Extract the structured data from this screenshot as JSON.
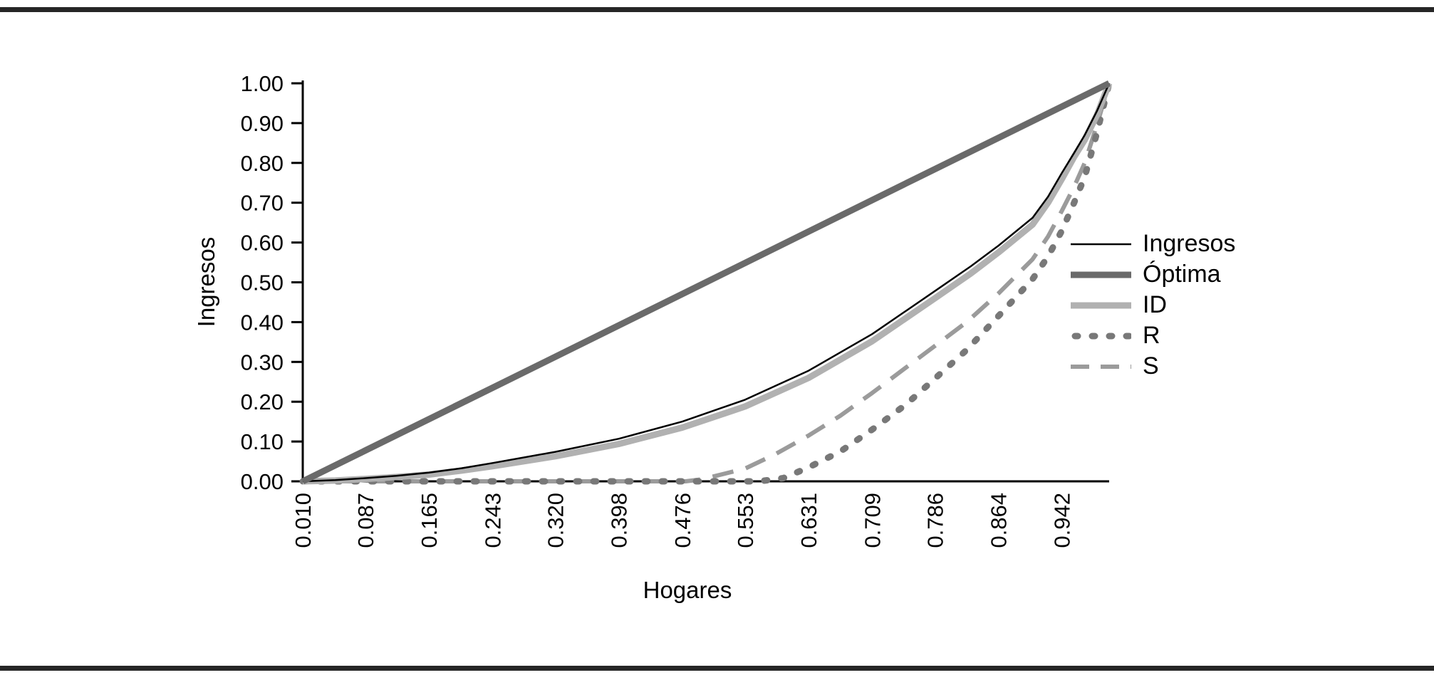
{
  "figure": {
    "x_axis_title": "Hogares",
    "y_axis_title": "Ingresos"
  },
  "chart_data": {
    "type": "line",
    "title": "",
    "xlabel": "Hogares",
    "ylabel": "Ingresos",
    "xlim": [
      0.01,
      1.0
    ],
    "ylim": [
      0.0,
      1.0
    ],
    "grid": false,
    "legend_position": "right-center",
    "x_tick_labels": [
      "0.010",
      "0.087",
      "0.165",
      "0.243",
      "0.320",
      "0.398",
      "0.476",
      "0.553",
      "0.631",
      "0.709",
      "0.786",
      "0.864",
      "0.942"
    ],
    "y_tick_labels": [
      "0.00",
      "0.10",
      "0.20",
      "0.30",
      "0.40",
      "0.50",
      "0.60",
      "0.70",
      "0.80",
      "0.90",
      "1.00"
    ],
    "axis_color": "#000000",
    "text_color": "#000000",
    "series": [
      {
        "name": "Ingresos",
        "style": "solid",
        "color": "#000000",
        "width": 2.5,
        "points": [
          [
            0.01,
            0.0
          ],
          [
            0.05,
            0.003
          ],
          [
            0.087,
            0.008
          ],
          [
            0.125,
            0.014
          ],
          [
            0.165,
            0.022
          ],
          [
            0.205,
            0.033
          ],
          [
            0.243,
            0.046
          ],
          [
            0.32,
            0.074
          ],
          [
            0.398,
            0.107
          ],
          [
            0.476,
            0.15
          ],
          [
            0.553,
            0.205
          ],
          [
            0.631,
            0.278
          ],
          [
            0.709,
            0.37
          ],
          [
            0.786,
            0.478
          ],
          [
            0.83,
            0.54
          ],
          [
            0.864,
            0.592
          ],
          [
            0.906,
            0.662
          ],
          [
            0.925,
            0.715
          ],
          [
            0.942,
            0.775
          ],
          [
            0.957,
            0.825
          ],
          [
            0.97,
            0.87
          ],
          [
            0.985,
            0.93
          ],
          [
            1.0,
            1.0
          ]
        ]
      },
      {
        "name": "Óptima",
        "style": "solid",
        "color": "#6a6a6a",
        "width": 9,
        "points": [
          [
            0.01,
            0.0
          ],
          [
            0.25,
            0.242
          ],
          [
            0.5,
            0.495
          ],
          [
            0.75,
            0.748
          ],
          [
            1.0,
            1.0
          ]
        ]
      },
      {
        "name": "ID",
        "style": "solid",
        "color": "#b1b1b1",
        "width": 9,
        "points": [
          [
            0.01,
            0.0
          ],
          [
            0.05,
            0.002
          ],
          [
            0.087,
            0.006
          ],
          [
            0.125,
            0.011
          ],
          [
            0.165,
            0.017
          ],
          [
            0.205,
            0.027
          ],
          [
            0.243,
            0.038
          ],
          [
            0.32,
            0.063
          ],
          [
            0.398,
            0.094
          ],
          [
            0.476,
            0.135
          ],
          [
            0.553,
            0.188
          ],
          [
            0.631,
            0.26
          ],
          [
            0.709,
            0.352
          ],
          [
            0.786,
            0.46
          ],
          [
            0.83,
            0.522
          ],
          [
            0.864,
            0.575
          ],
          [
            0.906,
            0.645
          ],
          [
            0.925,
            0.7
          ],
          [
            0.942,
            0.76
          ],
          [
            0.957,
            0.815
          ],
          [
            0.97,
            0.858
          ],
          [
            0.985,
            0.92
          ],
          [
            1.0,
            1.0
          ]
        ]
      },
      {
        "name": "R",
        "style": "dotted",
        "color": "#787878",
        "width": 9,
        "points": [
          [
            0.01,
            0.0
          ],
          [
            0.3,
            0.0
          ],
          [
            0.5,
            0.0
          ],
          [
            0.57,
            0.0
          ],
          [
            0.6,
            0.008
          ],
          [
            0.631,
            0.035
          ],
          [
            0.67,
            0.075
          ],
          [
            0.709,
            0.13
          ],
          [
            0.75,
            0.192
          ],
          [
            0.786,
            0.258
          ],
          [
            0.825,
            0.33
          ],
          [
            0.864,
            0.415
          ],
          [
            0.906,
            0.508
          ],
          [
            0.925,
            0.565
          ],
          [
            0.942,
            0.63
          ],
          [
            0.957,
            0.7
          ],
          [
            0.97,
            0.765
          ],
          [
            0.985,
            0.875
          ],
          [
            1.0,
            1.0
          ]
        ]
      },
      {
        "name": "S",
        "style": "dashed",
        "color": "#9b9b9b",
        "width": 6,
        "points": [
          [
            0.01,
            0.0
          ],
          [
            0.3,
            0.0
          ],
          [
            0.48,
            0.0
          ],
          [
            0.5,
            0.005
          ],
          [
            0.553,
            0.032
          ],
          [
            0.59,
            0.068
          ],
          [
            0.631,
            0.115
          ],
          [
            0.67,
            0.165
          ],
          [
            0.709,
            0.222
          ],
          [
            0.75,
            0.285
          ],
          [
            0.786,
            0.34
          ],
          [
            0.825,
            0.4
          ],
          [
            0.864,
            0.472
          ],
          [
            0.906,
            0.558
          ],
          [
            0.925,
            0.615
          ],
          [
            0.942,
            0.68
          ],
          [
            0.957,
            0.74
          ],
          [
            0.97,
            0.8
          ],
          [
            0.985,
            0.895
          ],
          [
            1.0,
            1.0
          ]
        ]
      }
    ]
  }
}
